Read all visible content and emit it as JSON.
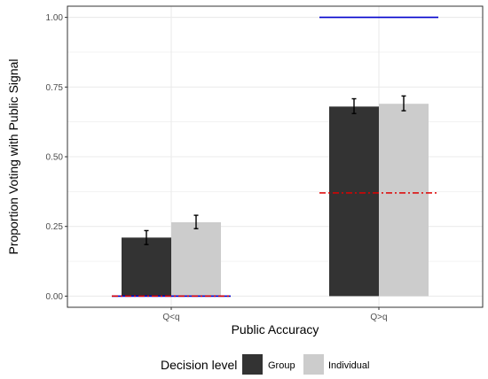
{
  "chart_data": {
    "type": "bar",
    "categories": [
      "Q<q",
      "Q>q"
    ],
    "series": [
      {
        "name": "Group",
        "color": "#333333",
        "values": [
          0.21,
          0.68
        ],
        "error_low": [
          0.185,
          0.655
        ],
        "error_high": [
          0.235,
          0.708
        ]
      },
      {
        "name": "Individual",
        "color": "#cccccc",
        "values": [
          0.265,
          0.69
        ],
        "error_low": [
          0.242,
          0.665
        ],
        "error_high": [
          0.29,
          0.718
        ]
      }
    ],
    "reference_lines": [
      {
        "category": "Q<q",
        "style": "solid",
        "color": "#0000cc",
        "value": 0.0
      },
      {
        "category": "Q<q",
        "style": "dashdot",
        "color": "#dd0000",
        "value": 0.0
      },
      {
        "category": "Q>q",
        "style": "solid",
        "color": "#0000cc",
        "value": 1.0
      },
      {
        "category": "Q>q",
        "style": "dashdot",
        "color": "#dd0000",
        "value": 0.37
      }
    ],
    "xlabel": "Public Accuracy",
    "ylabel": "Proportion Voting with Public Signal",
    "yticks": [
      0.0,
      0.25,
      0.5,
      0.75,
      1.0
    ],
    "ytick_labels": [
      "0.00",
      "0.25",
      "0.50",
      "0.75",
      "1.00"
    ],
    "ylim": [
      -0.04,
      1.04
    ],
    "grid": true,
    "legend": {
      "title": "Decision level",
      "position": "bottom",
      "entries": [
        "Group",
        "Individual"
      ]
    }
  }
}
